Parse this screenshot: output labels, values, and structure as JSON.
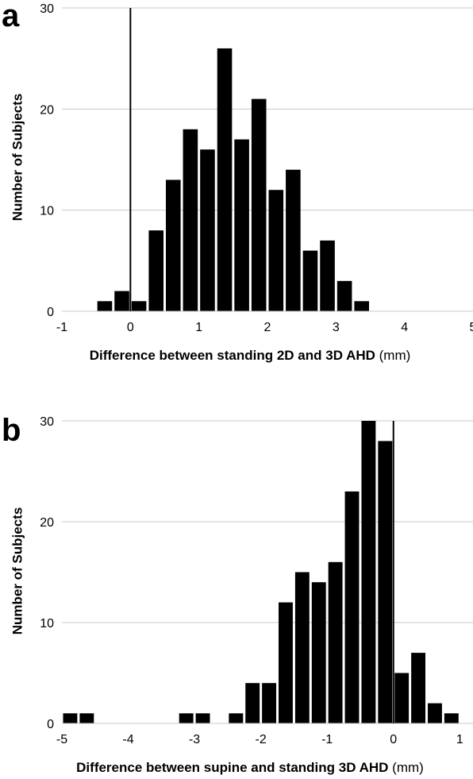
{
  "chart_data": [
    {
      "type": "bar",
      "panel_label": "a",
      "xlabel_bold": "Difference between standing 2D and 3D AHD",
      "xlabel_unit": "(mm)",
      "ylabel": "Number of Subjects",
      "xlim": [
        -1,
        5
      ],
      "ylim": [
        0,
        30
      ],
      "x_ticks": [
        "-1",
        "0",
        "1",
        "2",
        "3",
        "4",
        "5"
      ],
      "y_ticks": [
        "0",
        "10",
        "20",
        "30"
      ],
      "grid": true,
      "reference_line_x": 0,
      "bin_width": 0.25,
      "x": [
        -0.375,
        -0.125,
        0.125,
        0.375,
        0.625,
        0.875,
        1.125,
        1.375,
        1.625,
        1.875,
        2.125,
        2.375,
        2.625,
        2.875,
        3.125,
        3.375
      ],
      "values": [
        1,
        2,
        1,
        8,
        13,
        18,
        16,
        26,
        17,
        21,
        12,
        14,
        6,
        7,
        3,
        1
      ]
    },
    {
      "type": "bar",
      "panel_label": "b",
      "xlabel_bold": "Difference between supine and standing 3D AHD",
      "xlabel_unit": "(mm)",
      "ylabel": "Number of Subjects",
      "xlim": [
        -5,
        1.2
      ],
      "ylim": [
        0,
        30
      ],
      "x_ticks": [
        "-5",
        "-4",
        "-3",
        "-2",
        "-1",
        "0",
        "1"
      ],
      "y_ticks": [
        "0",
        "10",
        "20",
        "30"
      ],
      "grid": true,
      "reference_line_x": 0,
      "bin_width": 0.25,
      "x": [
        -4.875,
        -4.625,
        -3.125,
        -2.875,
        -2.375,
        -2.125,
        -1.875,
        -1.625,
        -1.375,
        -1.125,
        -0.875,
        -0.625,
        -0.375,
        -0.125,
        0.125,
        0.375,
        0.625,
        0.875
      ],
      "values": [
        1,
        1,
        1,
        1,
        1,
        4,
        4,
        12,
        15,
        14,
        16,
        23,
        30,
        28,
        5,
        7,
        2,
        1
      ]
    }
  ]
}
